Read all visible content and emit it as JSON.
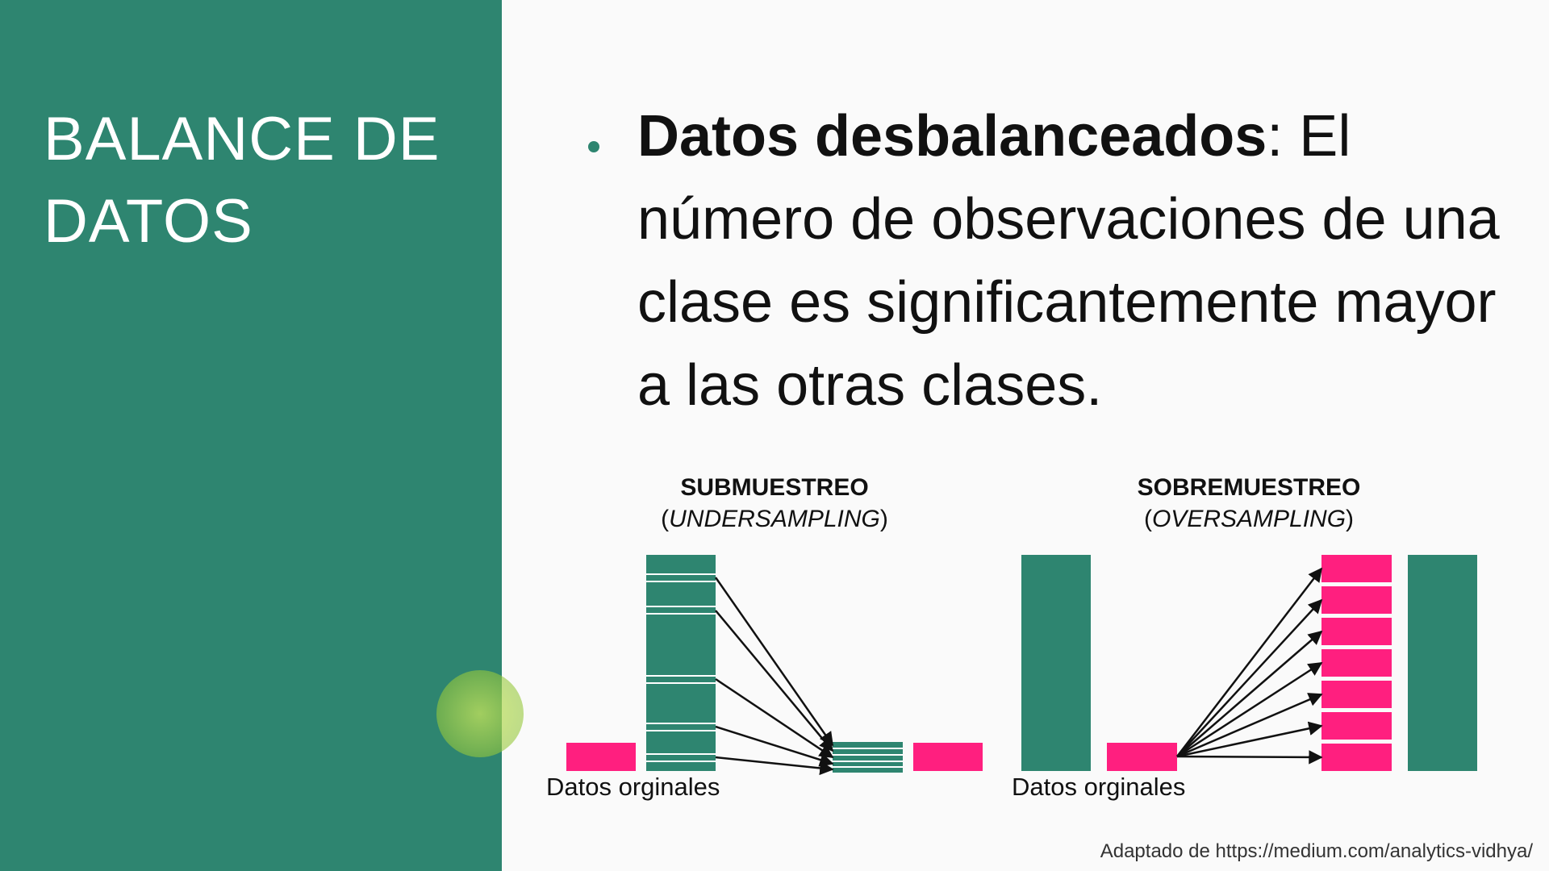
{
  "slide": {
    "title_line1": "BALANCE DE",
    "title_line2": "DATOS"
  },
  "bullet": {
    "term": "Datos desbalanceados",
    "rest": ": El número de observaciones de una clase es significantemente mayor a las otras clases."
  },
  "undersampling": {
    "title": "SUBMUESTREO",
    "paren_open": "(",
    "subtitle": "UNDERSAMPLING",
    "paren_close": ")",
    "caption": "Datos orginales"
  },
  "oversampling": {
    "title": "SOBREMUESTREO",
    "paren_open": "(",
    "subtitle": "OVERSAMPLING",
    "paren_close": ")",
    "caption": "Datos orginales"
  },
  "source": "Adaptado de https://medium.com/analytics-vidhya/",
  "colors": {
    "panel": "#2e8570",
    "majority": "#2e8570",
    "minority": "#ff1f7f",
    "background": "#fafafa"
  }
}
